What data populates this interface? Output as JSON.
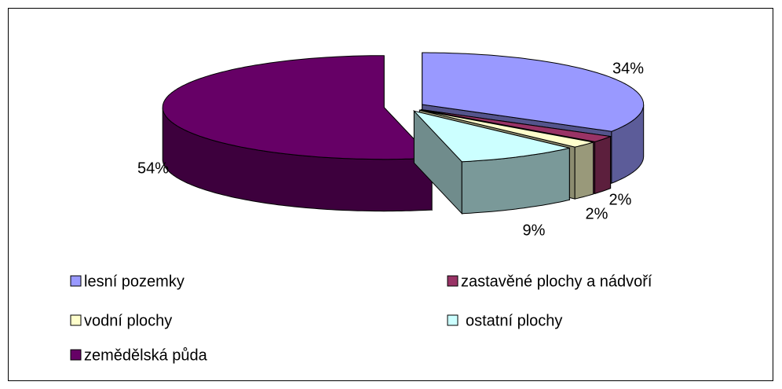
{
  "chart_data": {
    "type": "pie3d",
    "categories": [
      "lesní pozemky",
      "zastavěné plochy a nádvoří",
      "vodní plochy",
      "ostatní plochy",
      "zemědělská půda"
    ],
    "values": [
      34,
      2,
      2,
      9,
      54
    ],
    "value_labels": [
      "34%",
      "2%",
      "2%",
      "9%",
      "54%"
    ],
    "colors": [
      "#9999ff",
      "#993366",
      "#ffffcc",
      "#ccffff",
      "#660066"
    ],
    "legend": "bottom"
  }
}
